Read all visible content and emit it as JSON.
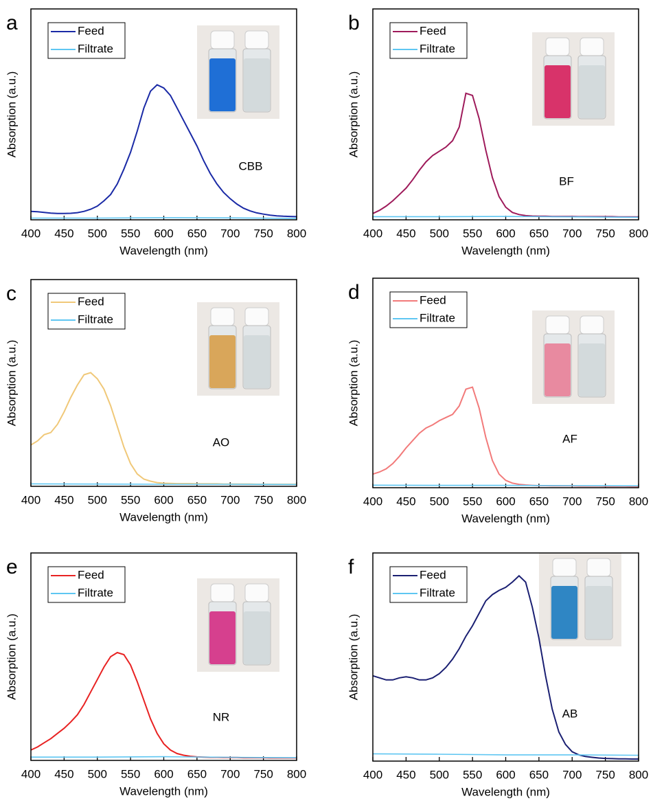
{
  "chart_data": [
    {
      "type": "line",
      "panel_label": "a",
      "annotation": "CBB",
      "x_label": "Wavelength (nm)",
      "y_label": "Absorption (a.u.)",
      "xlim": [
        400,
        800
      ],
      "xticks": [
        400,
        450,
        500,
        550,
        600,
        650,
        700,
        750,
        800
      ],
      "ylim": [
        0,
        1
      ],
      "inset_colors": [
        "#1f6fd6",
        "#d3dadc"
      ],
      "x": [
        400,
        410,
        420,
        430,
        440,
        450,
        460,
        470,
        480,
        490,
        500,
        510,
        520,
        530,
        540,
        550,
        560,
        570,
        580,
        590,
        600,
        610,
        620,
        630,
        640,
        650,
        660,
        670,
        680,
        690,
        700,
        710,
        720,
        730,
        740,
        750,
        760,
        770,
        780,
        790,
        800
      ],
      "series": [
        {
          "name": "Feed",
          "color": "#1a2aa6",
          "values": [
            0.04,
            0.038,
            0.035,
            0.032,
            0.03,
            0.03,
            0.031,
            0.034,
            0.04,
            0.05,
            0.065,
            0.09,
            0.12,
            0.17,
            0.24,
            0.32,
            0.42,
            0.53,
            0.61,
            0.64,
            0.625,
            0.59,
            0.53,
            0.47,
            0.41,
            0.35,
            0.28,
            0.22,
            0.17,
            0.13,
            0.1,
            0.075,
            0.055,
            0.042,
            0.033,
            0.027,
            0.022,
            0.019,
            0.017,
            0.016,
            0.015
          ]
        },
        {
          "name": "Filtrate",
          "color": "#5ec6f2",
          "x": [
            400,
            500,
            600,
            700,
            800
          ],
          "values": [
            0.008,
            0.008,
            0.01,
            0.009,
            0.007
          ]
        }
      ]
    },
    {
      "type": "line",
      "panel_label": "b",
      "annotation": "BF",
      "x_label": "Wavelength (nm)",
      "y_label": "Absorption (a.u.)",
      "xlim": [
        400,
        800
      ],
      "xticks": [
        400,
        450,
        500,
        550,
        600,
        650,
        700,
        750,
        800
      ],
      "ylim": [
        0,
        1
      ],
      "inset_colors": [
        "#d8336a",
        "#d3dadc"
      ],
      "x": [
        400,
        410,
        420,
        430,
        440,
        450,
        460,
        470,
        480,
        490,
        500,
        510,
        520,
        530,
        540,
        550,
        560,
        570,
        580,
        590,
        600,
        610,
        620,
        630,
        640,
        650,
        660,
        670,
        680,
        690,
        700,
        710,
        720,
        730,
        740,
        750,
        760,
        770,
        780,
        790,
        800
      ],
      "series": [
        {
          "name": "Feed",
          "color": "#9e1a5a",
          "values": [
            0.03,
            0.045,
            0.065,
            0.09,
            0.12,
            0.15,
            0.19,
            0.235,
            0.275,
            0.305,
            0.325,
            0.345,
            0.375,
            0.44,
            0.6,
            0.59,
            0.48,
            0.33,
            0.2,
            0.11,
            0.06,
            0.035,
            0.025,
            0.02,
            0.018,
            0.017,
            0.017,
            0.016,
            0.016,
            0.016,
            0.016,
            0.015,
            0.015,
            0.015,
            0.015,
            0.015,
            0.015,
            0.014,
            0.014,
            0.014,
            0.014
          ]
        },
        {
          "name": "Filtrate",
          "color": "#5ec6f2",
          "x": [
            400,
            500,
            600,
            700,
            800
          ],
          "values": [
            0.015,
            0.015,
            0.016,
            0.014,
            0.012
          ]
        }
      ]
    },
    {
      "type": "line",
      "panel_label": "c",
      "annotation": "AO",
      "x_label": "Wavelength (nm)",
      "y_label": "Absorption (a.u.)",
      "xlim": [
        400,
        800
      ],
      "xticks": [
        400,
        450,
        500,
        550,
        600,
        650,
        700,
        750,
        800
      ],
      "ylim": [
        0,
        1
      ],
      "inset_colors": [
        "#d9a65a",
        "#d3dadc"
      ],
      "x": [
        400,
        410,
        420,
        430,
        440,
        450,
        460,
        470,
        480,
        490,
        500,
        510,
        520,
        530,
        540,
        550,
        560,
        570,
        580,
        590,
        600,
        610,
        620,
        630,
        640,
        650,
        660,
        670,
        680,
        690,
        700,
        710,
        720,
        730,
        740,
        750,
        760,
        770,
        780,
        790,
        800
      ],
      "series": [
        {
          "name": "Feed",
          "color": "#f0c878",
          "values": [
            0.2,
            0.22,
            0.25,
            0.26,
            0.3,
            0.36,
            0.43,
            0.49,
            0.54,
            0.55,
            0.52,
            0.47,
            0.39,
            0.29,
            0.19,
            0.11,
            0.06,
            0.035,
            0.025,
            0.018,
            0.015,
            0.014,
            0.013,
            0.013,
            0.013,
            0.012,
            0.012,
            0.012,
            0.012,
            0.011,
            0.011,
            0.011,
            0.011,
            0.011,
            0.01,
            0.01,
            0.01,
            0.01,
            0.01,
            0.01,
            0.01
          ]
        },
        {
          "name": "Filtrate",
          "color": "#5ec6f2",
          "x": [
            400,
            500,
            600,
            700,
            800
          ],
          "values": [
            0.012,
            0.011,
            0.01,
            0.01,
            0.009
          ]
        }
      ]
    },
    {
      "type": "line",
      "panel_label": "d",
      "annotation": "AF",
      "x_label": "Wavelength (nm)",
      "y_label": "Absorption (a.u.)",
      "xlim": [
        400,
        800
      ],
      "xticks": [
        400,
        450,
        500,
        550,
        600,
        650,
        700,
        750,
        800
      ],
      "ylim": [
        0,
        1
      ],
      "inset_colors": [
        "#e88aa0",
        "#d3dadc"
      ],
      "x": [
        400,
        410,
        420,
        430,
        440,
        450,
        460,
        470,
        480,
        490,
        500,
        510,
        520,
        530,
        540,
        550,
        560,
        570,
        580,
        590,
        600,
        610,
        620,
        630,
        640,
        650,
        660,
        670,
        680,
        690,
        700,
        710,
        720,
        730,
        740,
        750,
        760,
        770,
        780,
        790,
        800
      ],
      "series": [
        {
          "name": "Feed",
          "color": "#f27a7a",
          "values": [
            0.065,
            0.075,
            0.09,
            0.115,
            0.15,
            0.19,
            0.225,
            0.26,
            0.285,
            0.3,
            0.32,
            0.335,
            0.35,
            0.39,
            0.47,
            0.48,
            0.38,
            0.24,
            0.13,
            0.065,
            0.035,
            0.022,
            0.016,
            0.013,
            0.011,
            0.01,
            0.01,
            0.009,
            0.009,
            0.009,
            0.009,
            0.008,
            0.008,
            0.008,
            0.008,
            0.007,
            0.007,
            0.007,
            0.007,
            0.006,
            0.006
          ]
        },
        {
          "name": "Filtrate",
          "color": "#5ec6f2",
          "x": [
            400,
            500,
            600,
            700,
            800
          ],
          "values": [
            0.012,
            0.011,
            0.011,
            0.01,
            0.009
          ]
        }
      ]
    },
    {
      "type": "line",
      "panel_label": "e",
      "annotation": "NR",
      "x_label": "Wavelength (nm)",
      "y_label": "Absorption (a.u.)",
      "xlim": [
        400,
        800
      ],
      "xticks": [
        400,
        450,
        500,
        550,
        600,
        650,
        700,
        750,
        800
      ],
      "ylim": [
        0,
        1
      ],
      "inset_colors": [
        "#d6408e",
        "#d3dadc"
      ],
      "x": [
        400,
        410,
        420,
        430,
        440,
        450,
        460,
        470,
        480,
        490,
        500,
        510,
        520,
        530,
        540,
        550,
        560,
        570,
        580,
        590,
        600,
        610,
        620,
        630,
        640,
        650,
        660,
        670,
        680,
        690,
        700,
        710,
        720,
        730,
        740,
        750,
        760,
        770,
        780,
        790,
        800
      ],
      "series": [
        {
          "name": "Feed",
          "color": "#e82222",
          "values": [
            0.05,
            0.065,
            0.085,
            0.105,
            0.13,
            0.155,
            0.185,
            0.22,
            0.27,
            0.33,
            0.39,
            0.45,
            0.5,
            0.52,
            0.51,
            0.46,
            0.38,
            0.29,
            0.2,
            0.13,
            0.08,
            0.05,
            0.033,
            0.025,
            0.02,
            0.017,
            0.016,
            0.015,
            0.015,
            0.014,
            0.014,
            0.014,
            0.013,
            0.013,
            0.013,
            0.013,
            0.012,
            0.012,
            0.012,
            0.012,
            0.012
          ]
        },
        {
          "name": "Filtrate",
          "color": "#5ec6f2",
          "x": [
            400,
            500,
            600,
            700,
            800
          ],
          "values": [
            0.016,
            0.016,
            0.018,
            0.015,
            0.013
          ]
        }
      ]
    },
    {
      "type": "line",
      "panel_label": "f",
      "annotation": "AB",
      "x_label": "Wavelength (nm)",
      "y_label": "Absorption (a.u.)",
      "xlim": [
        400,
        800
      ],
      "xticks": [
        400,
        450,
        500,
        550,
        600,
        650,
        700,
        750,
        800
      ],
      "ylim": [
        0,
        1
      ],
      "inset_colors": [
        "#2f86c4",
        "#d3dadc"
      ],
      "x": [
        400,
        410,
        420,
        430,
        440,
        450,
        460,
        470,
        480,
        490,
        500,
        510,
        520,
        530,
        540,
        550,
        560,
        570,
        580,
        590,
        600,
        610,
        620,
        630,
        640,
        650,
        660,
        670,
        680,
        690,
        700,
        710,
        720,
        730,
        740,
        750,
        760,
        770,
        780,
        790,
        800
      ],
      "series": [
        {
          "name": "Feed",
          "color": "#1a1f72",
          "values": [
            0.41,
            0.4,
            0.39,
            0.39,
            0.4,
            0.405,
            0.4,
            0.39,
            0.39,
            0.4,
            0.42,
            0.45,
            0.49,
            0.54,
            0.6,
            0.65,
            0.71,
            0.77,
            0.8,
            0.82,
            0.835,
            0.86,
            0.89,
            0.86,
            0.74,
            0.59,
            0.41,
            0.25,
            0.14,
            0.08,
            0.045,
            0.03,
            0.022,
            0.018,
            0.015,
            0.013,
            0.012,
            0.011,
            0.011,
            0.01,
            0.01
          ]
        },
        {
          "name": "Filtrate",
          "color": "#5ec6f2",
          "x": [
            400,
            500,
            600,
            700,
            800
          ],
          "values": [
            0.035,
            0.033,
            0.03,
            0.03,
            0.028
          ]
        }
      ]
    }
  ]
}
